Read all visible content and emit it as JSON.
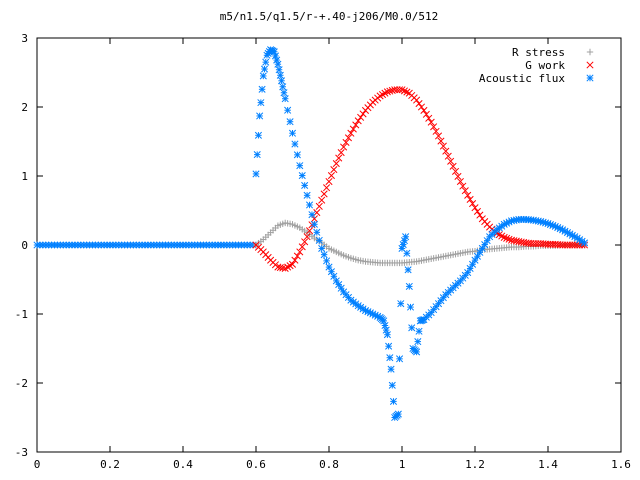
{
  "chart_data": {
    "type": "scatter",
    "title": "m5/n1.5/q1.5/r-+.40-j206/M0.0/512",
    "xlabel": "",
    "ylabel": "",
    "xlim": [
      0,
      1.6
    ],
    "ylim": [
      -3,
      3
    ],
    "xticks": [
      "0",
      "0.2",
      "0.4",
      "0.6",
      "0.8",
      "1",
      "1.2",
      "1.4",
      "1.6"
    ],
    "yticks": [
      "3",
      "2",
      "1",
      "0",
      "-1",
      "-2",
      "-3"
    ],
    "grid": false,
    "legend_position": "top-right",
    "series": [
      {
        "name": "R stress",
        "marker": "plus",
        "color": "#a0a0a0",
        "x": [
          0.6,
          0.62,
          0.64,
          0.66,
          0.68,
          0.7,
          0.72,
          0.74,
          0.76,
          0.78,
          0.8,
          0.82,
          0.84,
          0.86,
          0.88,
          0.9,
          0.92,
          0.94,
          0.96,
          0.98,
          1.0,
          1.02,
          1.04,
          1.06,
          1.08,
          1.1,
          1.12,
          1.14,
          1.16,
          1.18,
          1.2,
          1.22,
          1.24,
          1.26,
          1.28,
          1.3,
          1.32,
          1.34,
          1.36,
          1.38,
          1.4,
          1.42,
          1.44,
          1.46,
          1.48,
          1.5
        ],
        "y": [
          0.0,
          0.08,
          0.18,
          0.28,
          0.32,
          0.3,
          0.25,
          0.18,
          0.1,
          0.03,
          -0.05,
          -0.1,
          -0.15,
          -0.19,
          -0.22,
          -0.24,
          -0.25,
          -0.26,
          -0.26,
          -0.26,
          -0.26,
          -0.25,
          -0.24,
          -0.22,
          -0.2,
          -0.18,
          -0.16,
          -0.14,
          -0.12,
          -0.1,
          -0.09,
          -0.07,
          -0.06,
          -0.05,
          -0.04,
          -0.03,
          -0.03,
          -0.02,
          -0.02,
          -0.01,
          -0.01,
          -0.01,
          0.0,
          0.0,
          0.0,
          0.0
        ]
      },
      {
        "name": "G work",
        "marker": "cross",
        "color": "#ff0000",
        "x": [
          0.6,
          0.62,
          0.64,
          0.66,
          0.68,
          0.7,
          0.72,
          0.74,
          0.76,
          0.78,
          0.8,
          0.82,
          0.84,
          0.86,
          0.88,
          0.9,
          0.92,
          0.94,
          0.96,
          0.98,
          1.0,
          1.02,
          1.04,
          1.06,
          1.08,
          1.1,
          1.12,
          1.14,
          1.16,
          1.18,
          1.2,
          1.22,
          1.24,
          1.26,
          1.28,
          1.3,
          1.32,
          1.34,
          1.36,
          1.38,
          1.4,
          1.42,
          1.44,
          1.46,
          1.48,
          1.5
        ],
        "y": [
          0.0,
          -0.1,
          -0.22,
          -0.32,
          -0.34,
          -0.28,
          -0.1,
          0.12,
          0.38,
          0.65,
          0.92,
          1.18,
          1.42,
          1.62,
          1.8,
          1.95,
          2.07,
          2.16,
          2.22,
          2.25,
          2.25,
          2.2,
          2.1,
          1.95,
          1.78,
          1.58,
          1.36,
          1.14,
          0.92,
          0.72,
          0.54,
          0.38,
          0.26,
          0.17,
          0.11,
          0.07,
          0.05,
          0.03,
          0.02,
          0.02,
          0.01,
          0.01,
          0.0,
          0.0,
          0.0,
          0.0
        ]
      },
      {
        "name": "Acoustic flux",
        "marker": "star",
        "color": "#0080ff",
        "x": [
          0.6,
          0.61,
          0.62,
          0.63,
          0.64,
          0.65,
          0.66,
          0.67,
          0.68,
          0.7,
          0.72,
          0.74,
          0.76,
          0.78,
          0.8,
          0.82,
          0.84,
          0.86,
          0.88,
          0.9,
          0.92,
          0.94,
          0.95,
          0.96,
          0.97,
          0.98,
          0.99,
          1.0,
          1.01,
          1.02,
          1.03,
          1.04,
          1.05,
          1.06,
          1.08,
          1.1,
          1.12,
          1.14,
          1.16,
          1.18,
          1.2,
          1.22,
          1.24,
          1.26,
          1.28,
          1.3,
          1.32,
          1.34,
          1.36,
          1.38,
          1.4,
          1.42,
          1.44,
          1.46,
          1.48,
          1.5
        ],
        "y": [
          1.03,
          1.87,
          2.45,
          2.75,
          2.83,
          2.8,
          2.62,
          2.38,
          2.12,
          1.62,
          1.15,
          0.72,
          0.3,
          -0.05,
          -0.32,
          -0.52,
          -0.68,
          -0.8,
          -0.88,
          -0.95,
          -1.0,
          -1.05,
          -1.1,
          -1.3,
          -1.8,
          -2.5,
          -2.45,
          -0.05,
          0.12,
          -0.6,
          -1.5,
          -1.55,
          -1.1,
          -1.08,
          -0.98,
          -0.85,
          -0.72,
          -0.62,
          -0.52,
          -0.4,
          -0.22,
          -0.05,
          0.12,
          0.22,
          0.3,
          0.35,
          0.37,
          0.37,
          0.36,
          0.34,
          0.31,
          0.27,
          0.22,
          0.16,
          0.1,
          0.03
        ]
      }
    ]
  }
}
